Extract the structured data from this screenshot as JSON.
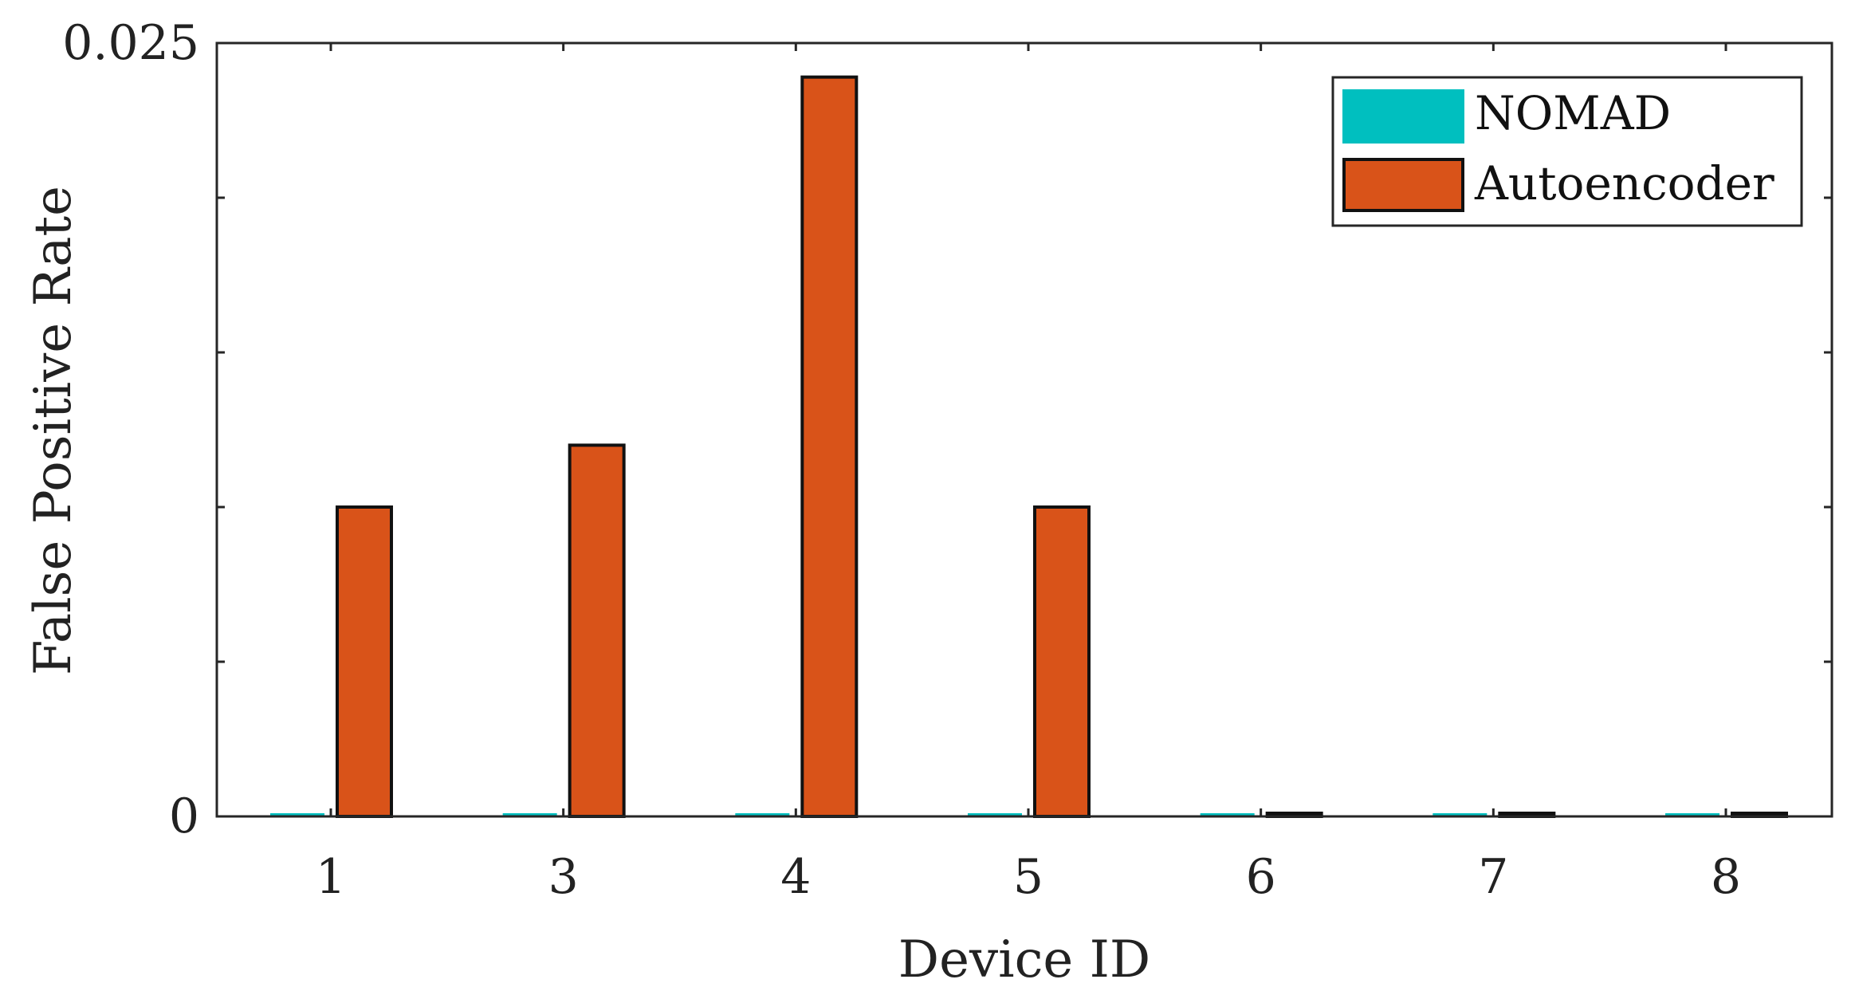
{
  "chart_data": {
    "type": "bar",
    "xlabel": "Device ID",
    "ylabel": "False Positive Rate",
    "categories": [
      "1",
      "3",
      "4",
      "5",
      "6",
      "7",
      "8"
    ],
    "series": [
      {
        "name": "NOMAD",
        "color": "#00BFBF",
        "values": [
          0,
          0,
          0,
          0,
          0,
          0,
          0
        ]
      },
      {
        "name": "Autoencoder",
        "color": "#D95319",
        "values": [
          0.01,
          0.012,
          0.0239,
          0.01,
          0,
          0,
          0
        ]
      }
    ],
    "ylim": [
      0,
      0.025
    ],
    "ytick_labels": [
      "0",
      "0.025"
    ],
    "y_minor_ticks": [
      0.005,
      0.01,
      0.015,
      0.02
    ],
    "legend_position": "top-right",
    "grid": false
  }
}
